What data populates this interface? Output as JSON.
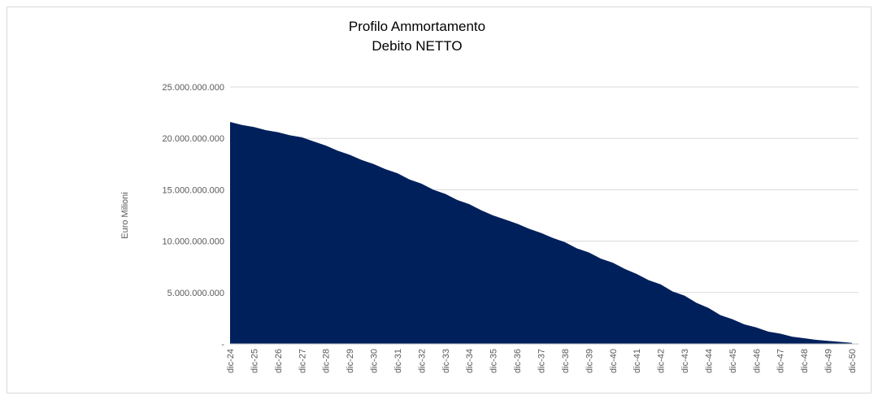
{
  "chart_data": {
    "type": "area",
    "title": "Profilo Ammortamento",
    "subtitle": "Debito NETTO",
    "y_label": "Euro Milioni",
    "color": "#00205c",
    "grid": true,
    "categories": [
      "dic-24",
      null,
      "dic-25",
      null,
      "dic-26",
      null,
      "dic-27",
      null,
      "dic-28",
      null,
      "dic-29",
      null,
      "dic-30",
      null,
      "dic-31",
      null,
      "dic-32",
      null,
      "dic-33",
      null,
      "dic-34",
      null,
      "dic-35",
      null,
      "dic-36",
      null,
      "dic-37",
      null,
      "dic-38",
      null,
      "dic-39",
      null,
      "dic-40",
      null,
      "dic-41",
      null,
      "dic-42",
      null,
      "dic-43",
      null,
      "dic-44",
      null,
      "dic-45",
      null,
      "dic-46",
      null,
      "dic-47",
      null,
      "dic-48",
      null,
      "dic-49",
      null,
      "dic-50"
    ],
    "values": [
      21600000000,
      21300000000,
      21100000000,
      20800000000,
      20600000000,
      20300000000,
      20100000000,
      19700000000,
      19300000000,
      18800000000,
      18400000000,
      17900000000,
      17500000000,
      17000000000,
      16600000000,
      16000000000,
      15600000000,
      15000000000,
      14600000000,
      14000000000,
      13600000000,
      13000000000,
      12500000000,
      12100000000,
      11700000000,
      11200000000,
      10800000000,
      10300000000,
      9900000000,
      9300000000,
      8900000000,
      8300000000,
      7900000000,
      7300000000,
      6800000000,
      6200000000,
      5800000000,
      5100000000,
      4700000000,
      4000000000,
      3500000000,
      2800000000,
      2400000000,
      1900000000,
      1600000000,
      1200000000,
      1000000000,
      700000000,
      550000000,
      400000000,
      300000000,
      200000000,
      100000000
    ],
    "ylim": [
      0,
      25000000000
    ],
    "yticks": [
      {
        "value": 0,
        "label": "-"
      },
      {
        "value": 5000000000,
        "label": "5.000.000.000"
      },
      {
        "value": 10000000000,
        "label": "10.000.000.000"
      },
      {
        "value": 15000000000,
        "label": "15.000.000.000"
      },
      {
        "value": 20000000000,
        "label": "20.000.000.000"
      },
      {
        "value": 25000000000,
        "label": "25.000.000.000"
      }
    ]
  }
}
